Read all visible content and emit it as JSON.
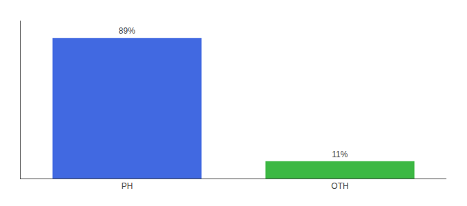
{
  "chart_data": {
    "type": "bar",
    "categories": [
      "PH",
      "OTH"
    ],
    "values": [
      89,
      11
    ],
    "colors": [
      "#4169e1",
      "#3cb843"
    ],
    "value_labels": [
      "89%",
      "11%"
    ],
    "data_labels": true,
    "ylim": [
      0,
      100
    ],
    "tick_labels": "x",
    "grid": false
  }
}
